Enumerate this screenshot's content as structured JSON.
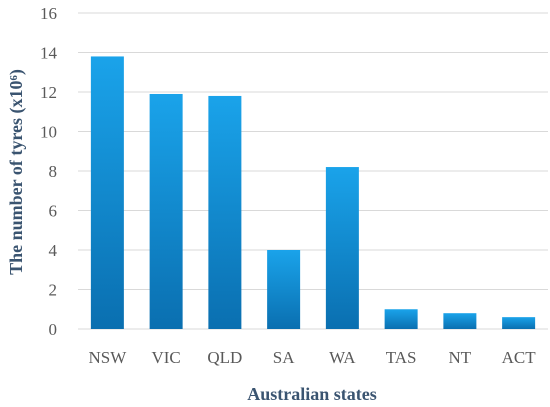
{
  "chart_data": {
    "type": "bar",
    "categories": [
      "NSW",
      "VIC",
      "QLD",
      "SA",
      "WA",
      "TAS",
      "NT",
      "ACT"
    ],
    "values": [
      13.8,
      11.9,
      11.8,
      4.0,
      8.2,
      1.0,
      0.8,
      0.6
    ],
    "title": "",
    "xlabel": "Australian states",
    "ylabel": "The number of tyres (x10⁶)",
    "ylim": [
      0,
      16
    ],
    "yticks": [
      "0",
      "2",
      "4",
      "6",
      "8",
      "10",
      "12",
      "14",
      "16"
    ],
    "grid": true,
    "legend": "none",
    "colors": {
      "bar_top": "#1aa3ea",
      "bar_bottom": "#0a6fb0"
    }
  }
}
